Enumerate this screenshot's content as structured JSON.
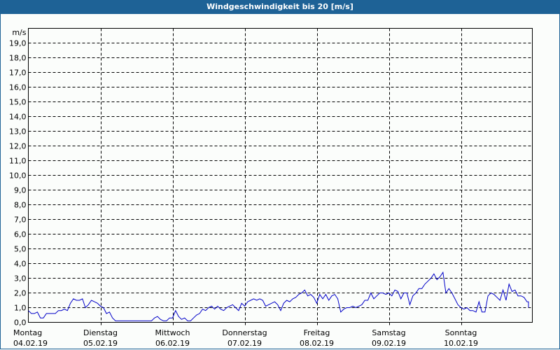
{
  "window": {
    "title": "Windgeschwindigkeit bis 20 [m/s]",
    "title_bg": "#1e6296",
    "title_fg": "#ffffff"
  },
  "chart_data": {
    "type": "line",
    "title": "Windgeschwindigkeit bis 20 [m/s]",
    "xlabel": "",
    "ylabel": "m/s",
    "ylim": [
      0,
      20
    ],
    "grid": true,
    "line_color": "#0000c8",
    "y_ticks": [
      "0,0",
      "1,0",
      "2,0",
      "3,0",
      "4,0",
      "5,0",
      "6,0",
      "7,0",
      "8,0",
      "9,0",
      "10,0",
      "11,0",
      "12,0",
      "13,0",
      "14,0",
      "15,0",
      "16,0",
      "17,0",
      "18,0",
      "19,0"
    ],
    "x_ticks": [
      {
        "day": "Montag",
        "date": "04.02.19"
      },
      {
        "day": "Dienstag",
        "date": "05.02.19"
      },
      {
        "day": "Mittwoch",
        "date": "06.02.19"
      },
      {
        "day": "Donnerstag",
        "date": "07.02.19"
      },
      {
        "day": "Freitag",
        "date": "08.02.19"
      },
      {
        "day": "Samstag",
        "date": "09.02.19"
      },
      {
        "day": "Sonntag",
        "date": "10.02.19"
      }
    ],
    "series": [
      {
        "name": "Windgeschwindigkeit",
        "points_per_day": 24,
        "values": [
          0.8,
          0.6,
          0.6,
          0.7,
          0.3,
          0.3,
          0.6,
          0.6,
          0.6,
          0.6,
          0.8,
          0.8,
          0.9,
          0.8,
          1.3,
          1.6,
          1.5,
          1.5,
          1.6,
          1.0,
          1.2,
          1.5,
          1.4,
          1.3,
          1.1,
          1.0,
          0.6,
          0.7,
          0.3,
          0.1,
          0.1,
          0.1,
          0.1,
          0.1,
          0.1,
          0.1,
          0.1,
          0.1,
          0.1,
          0.1,
          0.1,
          0.1,
          0.3,
          0.4,
          0.2,
          0.1,
          0.1,
          0.3,
          0.3,
          0.8,
          0.4,
          0.2,
          0.3,
          0.1,
          0.1,
          0.3,
          0.5,
          0.6,
          0.9,
          0.8,
          1.0,
          1.1,
          0.9,
          1.1,
          0.9,
          0.8,
          1.0,
          1.1,
          1.2,
          1.0,
          0.8,
          1.3,
          1.1,
          1.4,
          1.5,
          1.6,
          1.5,
          1.6,
          1.5,
          1.1,
          1.2,
          1.3,
          1.4,
          1.2,
          0.8,
          1.3,
          1.5,
          1.4,
          1.6,
          1.7,
          1.9,
          2.0,
          2.2,
          1.8,
          1.9,
          1.7,
          1.3,
          1.9,
          1.6,
          1.9,
          1.5,
          1.8,
          1.9,
          1.6,
          0.7,
          0.9,
          1.0,
          1.0,
          1.1,
          1.0,
          1.1,
          1.2,
          1.5,
          1.5,
          2.0,
          1.6,
          1.8,
          2.0,
          2.0,
          1.9,
          2.0,
          1.8,
          2.2,
          2.1,
          1.6,
          2.0,
          2.0,
          1.2,
          1.8,
          2.0,
          2.3,
          2.3,
          2.6,
          2.8,
          3.0,
          3.3,
          2.9,
          3.1,
          3.4,
          2.0,
          2.3,
          2.0,
          1.6,
          1.2,
          1.0,
          0.9,
          1.0,
          0.8,
          0.8,
          0.7,
          1.4,
          0.7,
          0.7,
          1.8,
          2.0,
          1.9,
          1.7,
          1.5,
          2.2,
          1.5,
          2.6,
          2.1,
          2.2,
          1.8,
          1.8,
          1.7,
          1.4,
          1.4,
          1.0
        ]
      }
    ]
  }
}
